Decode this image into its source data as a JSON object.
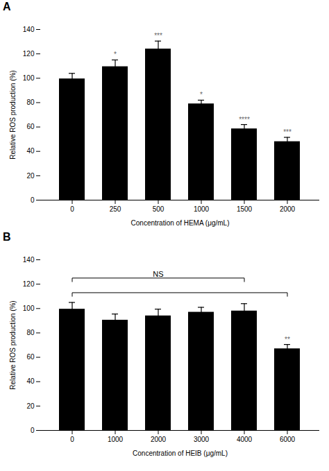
{
  "chart_data": [
    {
      "type": "bar",
      "title": "A",
      "categories": [
        "0",
        "250",
        "500",
        "1000",
        "1500",
        "2000"
      ],
      "values": [
        99.5,
        109.5,
        124.0,
        79.0,
        58.5,
        48.0
      ],
      "errors": [
        4.5,
        5.5,
        6.5,
        3.0,
        3.5,
        3.5
      ],
      "significance": [
        null,
        "*",
        "***",
        "*",
        "****",
        "***"
      ],
      "xlabel": "Concentration of HEMA (μg/mL)",
      "ylabel": "Relative ROS production (%)",
      "ylim": [
        0,
        140
      ],
      "yticks": [
        0,
        20,
        40,
        60,
        80,
        100,
        120,
        140
      ]
    },
    {
      "type": "bar",
      "title": "B",
      "categories": [
        "0",
        "1000",
        "2000",
        "3000",
        "4000",
        "6000"
      ],
      "values": [
        99.5,
        90.5,
        94.0,
        97.0,
        98.0,
        67.0
      ],
      "errors": [
        5.5,
        5.0,
        5.5,
        4.0,
        6.0,
        3.5
      ],
      "significance": [
        null,
        null,
        null,
        null,
        null,
        "**"
      ],
      "brackets": [
        {
          "start": "0",
          "end": "4000",
          "y": 125,
          "label": "NS",
          "label_x": "2000",
          "label_y": 126
        },
        {
          "start": "0",
          "end": "6000",
          "y": 113
        }
      ],
      "xlabel": "Concentration of HEIB (μg/mL)",
      "ylabel": "Relative ROS production (%)",
      "ylim": [
        0,
        140
      ],
      "yticks": [
        0,
        20,
        40,
        60,
        80,
        100,
        120,
        140
      ]
    }
  ]
}
